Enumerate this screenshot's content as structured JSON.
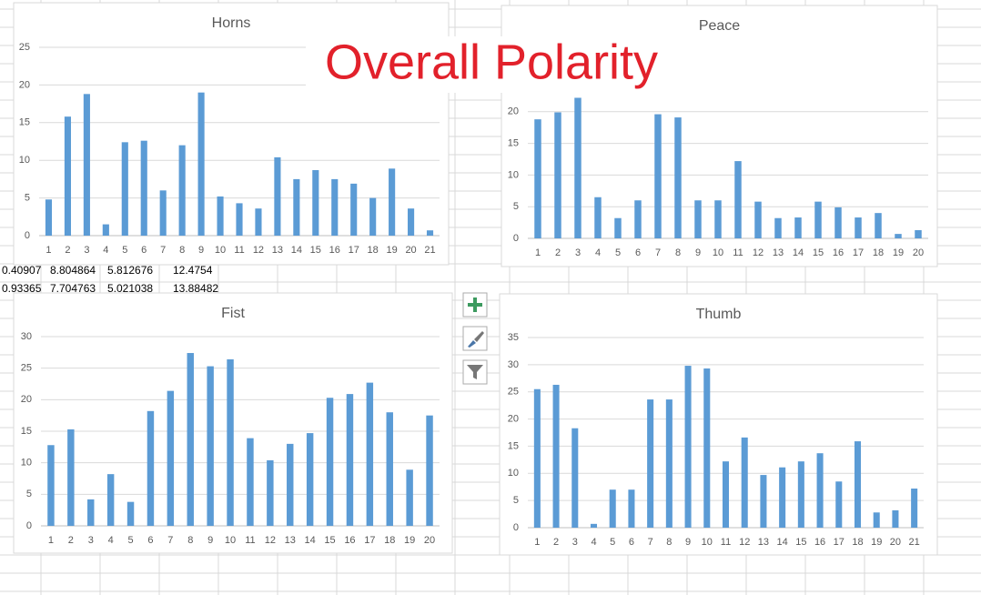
{
  "overlay_title": "Overall Polarity",
  "cells": [
    [
      "0.40907",
      "8.804864",
      "5.812676",
      "12.4754"
    ],
    [
      "0.93365",
      "7.704763",
      "5.021038",
      "13.88482"
    ]
  ],
  "chart_data": [
    {
      "type": "bar",
      "title": "Horns",
      "color": "#5b9bd5",
      "grid": true,
      "categories": [
        "1",
        "2",
        "3",
        "4",
        "5",
        "6",
        "7",
        "8",
        "9",
        "10",
        "11",
        "12",
        "13",
        "14",
        "15",
        "16",
        "17",
        "18",
        "19",
        "20",
        "21"
      ],
      "values": [
        4.8,
        15.8,
        18.8,
        1.5,
        12.4,
        12.6,
        6.0,
        12.0,
        19.0,
        5.2,
        4.3,
        3.6,
        10.4,
        7.5,
        8.7,
        7.5,
        6.9,
        5.0,
        8.9,
        3.6,
        0.7
      ],
      "ylim": [
        0,
        25
      ],
      "yticks": [
        0,
        5,
        10,
        15,
        20,
        25
      ]
    },
    {
      "type": "bar",
      "title": "Peace",
      "color": "#5b9bd5",
      "grid": true,
      "categories": [
        "1",
        "2",
        "3",
        "4",
        "5",
        "6",
        "7",
        "8",
        "9",
        "10",
        "11",
        "12",
        "13",
        "14",
        "15",
        "16",
        "17",
        "18",
        "19",
        "20"
      ],
      "values": [
        18.8,
        19.9,
        22.2,
        6.5,
        3.2,
        6.0,
        19.6,
        19.1,
        6.0,
        6.0,
        12.2,
        5.8,
        3.2,
        3.3,
        5.8,
        4.9,
        3.3,
        4.0,
        0.7,
        1.3
      ],
      "ylim": [
        0,
        25
      ],
      "yticks": [
        0,
        5,
        10,
        15,
        20
      ]
    },
    {
      "type": "bar",
      "title": "Fist",
      "color": "#5b9bd5",
      "grid": true,
      "categories": [
        "1",
        "2",
        "3",
        "4",
        "5",
        "6",
        "7",
        "8",
        "9",
        "10",
        "11",
        "12",
        "13",
        "14",
        "15",
        "16",
        "17",
        "18",
        "19",
        "20"
      ],
      "values": [
        12.8,
        15.3,
        4.2,
        8.2,
        3.8,
        18.2,
        21.4,
        27.4,
        25.3,
        26.4,
        13.9,
        10.4,
        13.0,
        14.7,
        20.3,
        20.9,
        22.7,
        18.0,
        8.9,
        17.5
      ],
      "ylim": [
        0,
        30
      ],
      "yticks": [
        0,
        5,
        10,
        15,
        20,
        25,
        30
      ]
    },
    {
      "type": "bar",
      "title": "Thumb",
      "color": "#5b9bd5",
      "grid": true,
      "categories": [
        "1",
        "2",
        "3",
        "4",
        "5",
        "6",
        "7",
        "8",
        "9",
        "10",
        "11",
        "12",
        "13",
        "14",
        "15",
        "16",
        "17",
        "18",
        "19",
        "20",
        "21"
      ],
      "values": [
        25.5,
        26.3,
        18.3,
        0.7,
        7.0,
        7.0,
        23.6,
        23.6,
        29.8,
        29.3,
        12.2,
        16.6,
        9.7,
        11.1,
        12.2,
        13.7,
        8.5,
        15.9,
        2.8,
        3.2,
        7.2
      ],
      "ylim": [
        0,
        35
      ],
      "yticks": [
        0,
        5,
        10,
        15,
        20,
        25,
        30,
        35
      ]
    }
  ]
}
